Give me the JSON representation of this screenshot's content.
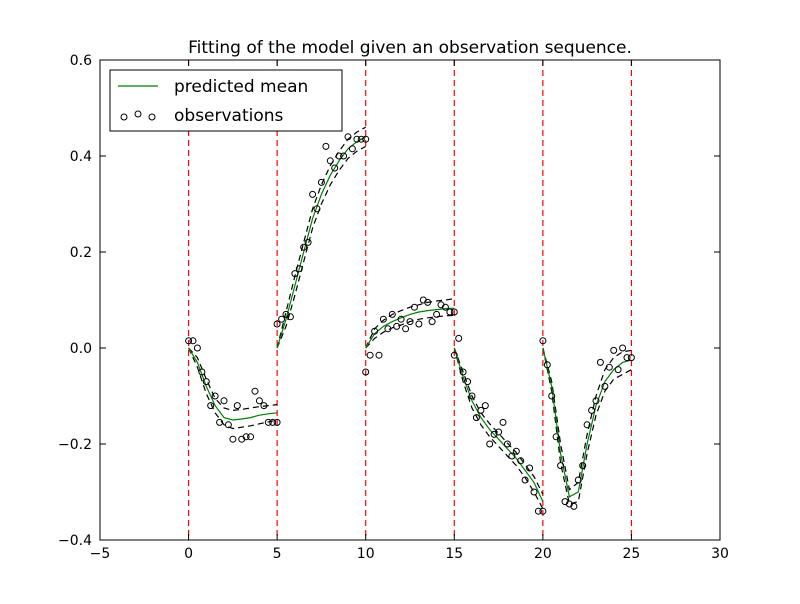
{
  "chart_data": {
    "type": "line",
    "title": "Fitting of the model given an observation sequence.",
    "xlabel": "",
    "ylabel": "",
    "xlim": [
      -5,
      30
    ],
    "ylim": [
      -0.4,
      0.6
    ],
    "xticks": [
      -5,
      0,
      5,
      10,
      15,
      20,
      25,
      30
    ],
    "xtick_labels": [
      "−5",
      "0",
      "5",
      "10",
      "15",
      "20",
      "25",
      "30"
    ],
    "yticks": [
      -0.4,
      -0.2,
      0.0,
      0.2,
      0.4,
      0.6
    ],
    "ytick_labels": [
      "−0.4",
      "−0.2",
      "0.0",
      "0.2",
      "0.4",
      "0.6"
    ],
    "grid": false,
    "legend": {
      "placement": "upper-left",
      "entries": [
        {
          "label": "predicted mean",
          "style": "line",
          "color": "#008000"
        },
        {
          "label": "observations",
          "style": "markers",
          "color": "#000000"
        }
      ]
    },
    "vertical_lines": {
      "x": [
        0,
        5,
        10,
        15,
        20,
        25
      ],
      "color": "#ff0000",
      "style": "dashed"
    },
    "colors": {
      "mean": "#008000",
      "band": "#000000",
      "observations": "#000000",
      "boundaries": "#ff0000"
    },
    "segments": [
      {
        "x": [
          0,
          0.5,
          1,
          1.5,
          2,
          2.5,
          3,
          3.5,
          4,
          4.5,
          5
        ],
        "mean": [
          0.0,
          -0.03,
          -0.08,
          -0.12,
          -0.145,
          -0.15,
          -0.148,
          -0.145,
          -0.14,
          -0.137,
          -0.135
        ],
        "upper": [
          0.0,
          -0.02,
          -0.065,
          -0.105,
          -0.125,
          -0.13,
          -0.128,
          -0.125,
          -0.122,
          -0.12,
          -0.118
        ],
        "lower": [
          0.0,
          -0.04,
          -0.095,
          -0.135,
          -0.16,
          -0.168,
          -0.165,
          -0.162,
          -0.158,
          -0.154,
          -0.15
        ]
      },
      {
        "x": [
          5,
          5.5,
          6,
          6.5,
          7,
          7.5,
          8,
          8.5,
          9,
          9.5,
          10
        ],
        "mean": [
          0.0,
          0.06,
          0.13,
          0.2,
          0.27,
          0.32,
          0.36,
          0.39,
          0.415,
          0.43,
          0.44
        ],
        "upper": [
          0.0,
          0.075,
          0.15,
          0.22,
          0.29,
          0.34,
          0.38,
          0.41,
          0.435,
          0.45,
          0.46
        ],
        "lower": [
          0.0,
          0.045,
          0.11,
          0.18,
          0.25,
          0.3,
          0.34,
          0.37,
          0.395,
          0.41,
          0.42
        ]
      },
      {
        "x": [
          10,
          10.5,
          11,
          11.5,
          12,
          12.5,
          13,
          13.5,
          14,
          14.5,
          15
        ],
        "mean": [
          0.0,
          0.03,
          0.045,
          0.055,
          0.063,
          0.07,
          0.075,
          0.078,
          0.08,
          0.082,
          0.083
        ],
        "upper": [
          0.0,
          0.04,
          0.058,
          0.07,
          0.078,
          0.085,
          0.09,
          0.095,
          0.098,
          0.1,
          0.103
        ],
        "lower": [
          0.0,
          0.02,
          0.033,
          0.042,
          0.048,
          0.055,
          0.06,
          0.063,
          0.065,
          0.067,
          0.068
        ]
      },
      {
        "x": [
          15,
          15.5,
          16,
          16.5,
          17,
          17.5,
          18,
          18.5,
          19,
          19.5,
          20
        ],
        "mean": [
          0.0,
          -0.06,
          -0.11,
          -0.145,
          -0.17,
          -0.19,
          -0.21,
          -0.23,
          -0.255,
          -0.28,
          -0.32
        ],
        "upper": [
          0.0,
          -0.05,
          -0.1,
          -0.135,
          -0.158,
          -0.178,
          -0.198,
          -0.218,
          -0.243,
          -0.268,
          -0.305
        ],
        "lower": [
          0.0,
          -0.07,
          -0.125,
          -0.16,
          -0.185,
          -0.205,
          -0.225,
          -0.245,
          -0.27,
          -0.3,
          -0.335
        ]
      },
      {
        "x": [
          20,
          20.5,
          21,
          21.5,
          22,
          22.5,
          23,
          23.5,
          24,
          24.5,
          25
        ],
        "mean": [
          0.0,
          -0.08,
          -0.22,
          -0.31,
          -0.3,
          -0.2,
          -0.12,
          -0.07,
          -0.045,
          -0.03,
          -0.025
        ],
        "upper": [
          0.0,
          -0.07,
          -0.2,
          -0.295,
          -0.28,
          -0.18,
          -0.1,
          -0.045,
          -0.02,
          -0.008,
          -0.005
        ],
        "lower": [
          0.0,
          -0.09,
          -0.24,
          -0.325,
          -0.32,
          -0.22,
          -0.14,
          -0.09,
          -0.065,
          -0.055,
          -0.045
        ]
      }
    ],
    "observations": {
      "x": [
        0,
        0.25,
        0.5,
        0.75,
        1,
        1.25,
        1.5,
        1.75,
        2,
        2.25,
        2.5,
        2.75,
        3,
        3.25,
        3.5,
        3.75,
        4,
        4.25,
        4.5,
        4.75,
        5,
        5,
        5.25,
        5.5,
        5.75,
        6,
        6.25,
        6.5,
        6.75,
        7,
        7.25,
        7.5,
        7.75,
        8,
        8.25,
        8.5,
        8.75,
        9,
        9.25,
        9.5,
        9.75,
        10,
        10,
        10.25,
        10.5,
        10.75,
        11,
        11.25,
        11.5,
        11.75,
        12,
        12.25,
        12.5,
        12.75,
        13,
        13.25,
        13.5,
        13.75,
        14,
        14.25,
        14.5,
        14.75,
        15,
        15,
        15.25,
        15.5,
        15.75,
        16,
        16.25,
        16.5,
        16.75,
        17,
        17.25,
        17.5,
        17.75,
        18,
        18.25,
        18.5,
        18.75,
        19,
        19.25,
        19.5,
        19.75,
        20,
        20,
        20.25,
        20.5,
        20.75,
        21,
        21.25,
        21.5,
        21.75,
        22,
        22.25,
        22.5,
        22.75,
        23,
        23.25,
        23.5,
        23.75,
        24,
        24.25,
        24.5,
        24.75,
        25
      ],
      "y": [
        0.015,
        0.015,
        0.0,
        -0.05,
        -0.07,
        -0.12,
        -0.1,
        -0.155,
        -0.11,
        -0.16,
        -0.19,
        -0.12,
        -0.19,
        -0.185,
        -0.185,
        -0.09,
        -0.11,
        -0.12,
        -0.155,
        -0.155,
        -0.155,
        0.05,
        0.06,
        0.07,
        0.065,
        0.155,
        0.165,
        0.21,
        0.22,
        0.32,
        0.29,
        0.345,
        0.42,
        0.39,
        0.375,
        0.4,
        0.4,
        0.44,
        0.415,
        0.435,
        0.435,
        0.435,
        -0.05,
        -0.015,
        0.035,
        -0.015,
        0.06,
        0.04,
        0.07,
        0.045,
        0.06,
        0.04,
        0.055,
        0.085,
        0.05,
        0.1,
        0.095,
        0.055,
        0.07,
        0.09,
        0.085,
        0.075,
        0.075,
        -0.015,
        0.02,
        -0.05,
        -0.07,
        -0.1,
        -0.145,
        -0.13,
        -0.12,
        -0.2,
        -0.18,
        -0.175,
        -0.155,
        -0.2,
        -0.225,
        -0.215,
        -0.235,
        -0.275,
        -0.25,
        -0.3,
        -0.34,
        -0.34,
        0.015,
        -0.035,
        -0.1,
        -0.185,
        -0.245,
        -0.32,
        -0.325,
        -0.33,
        -0.275,
        -0.245,
        -0.16,
        -0.13,
        -0.11,
        -0.03,
        -0.08,
        -0.04,
        -0.005,
        -0.045,
        0.0,
        -0.02,
        -0.02
      ]
    }
  }
}
